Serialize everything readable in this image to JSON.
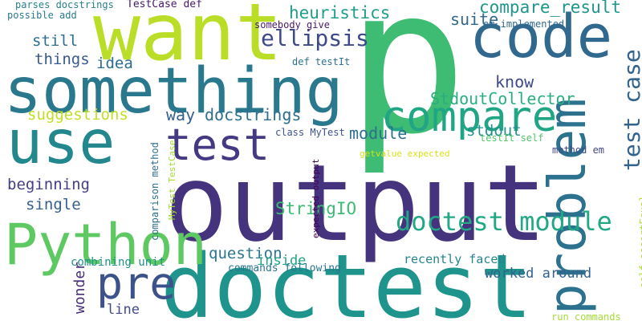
{
  "words": [
    {
      "text": "p",
      "color": "#3fbc73"
    },
    {
      "text": "output",
      "color": "#46337e"
    },
    {
      "text": "doctest",
      "color": "#1f948c"
    },
    {
      "text": "want",
      "color": "#bade28"
    },
    {
      "text": "something",
      "color": "#2a788e"
    },
    {
      "text": "use",
      "color": "#23888e"
    },
    {
      "text": "code",
      "color": "#31688e"
    },
    {
      "text": "Python",
      "color": "#5ec962"
    },
    {
      "text": "problem",
      "color": "#2c728e"
    },
    {
      "text": "compare",
      "color": "#21a685"
    },
    {
      "text": "test",
      "color": "#443983"
    },
    {
      "text": "pre",
      "color": "#3b528b"
    },
    {
      "text": "doctest module",
      "color": "#22a884"
    },
    {
      "text": "test case",
      "color": "#33638d"
    },
    {
      "text": "ellipsis",
      "color": "#3e4989"
    },
    {
      "text": "heuristics",
      "color": "#1f9e89"
    },
    {
      "text": "compare_result",
      "color": "#1f968b"
    },
    {
      "text": "suite",
      "color": "#31688e"
    },
    {
      "text": "module",
      "color": "#2d708e"
    },
    {
      "text": "StdoutCollector",
      "color": "#29af7f"
    },
    {
      "text": "know",
      "color": "#3e4a89"
    },
    {
      "text": "docstrings",
      "color": "#2e6e8e"
    },
    {
      "text": "way",
      "color": "#355f8d"
    },
    {
      "text": "idea",
      "color": "#2f6c8e"
    },
    {
      "text": "things",
      "color": "#38598c"
    },
    {
      "text": "still",
      "color": "#2e6f8e"
    },
    {
      "text": "suggestions",
      "color": "#c0df25"
    },
    {
      "text": "beginning",
      "color": "#433e85"
    },
    {
      "text": "single",
      "color": "#355e8d"
    },
    {
      "text": "question",
      "color": "#2b758e"
    },
    {
      "text": "StringIO",
      "color": "#3dbc74"
    },
    {
      "text": "stdout",
      "color": "#218f8d"
    },
    {
      "text": "inside",
      "color": "#20a386"
    },
    {
      "text": "worked around",
      "color": "#34618d"
    },
    {
      "text": "recently faced",
      "color": "#24868e"
    },
    {
      "text": "combining unit",
      "color": "#21918c"
    },
    {
      "text": "wonder",
      "color": "#472d7b"
    },
    {
      "text": "line",
      "color": "#3e4a89"
    },
    {
      "text": "commands following",
      "color": "#2a768e"
    },
    {
      "text": "run commands",
      "color": "#a5db36"
    },
    {
      "text": "TestCase def",
      "color": "#481769"
    },
    {
      "text": "parses docstrings",
      "color": "#26818e"
    },
    {
      "text": "possible add",
      "color": "#2a788e"
    },
    {
      "text": "somebody give",
      "color": "#481a6c"
    },
    {
      "text": "em implemented",
      "color": "#31688e"
    },
    {
      "text": "def testIt",
      "color": "#2c718e"
    },
    {
      "text": "class MyTest",
      "color": "#3a548c"
    },
    {
      "text": "testIt self",
      "color": "#52c569"
    },
    {
      "text": "getvalue expected",
      "color": "#d8e219"
    },
    {
      "text": "method em",
      "color": "#3f4788"
    },
    {
      "text": "expected output",
      "color": "#440154"
    },
    {
      "text": "comparison method",
      "color": "#2d708e"
    },
    {
      "text": "MyTest TestCase",
      "color": "#a2da37"
    },
    {
      "text": "self assertEqual",
      "color": "#addc30"
    }
  ]
}
